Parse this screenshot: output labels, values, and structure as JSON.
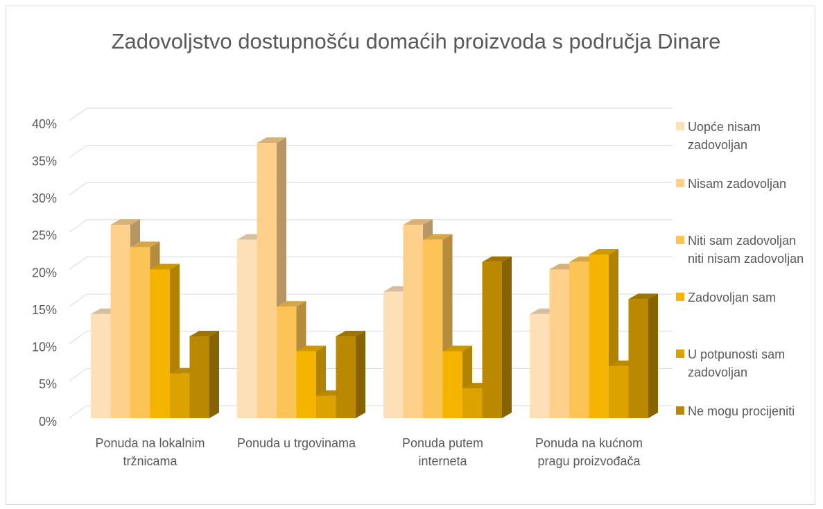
{
  "chart_data": {
    "type": "bar3d",
    "title": "Zadovoljstvo dostupnošću domaćih proizvoda s područja Dinare",
    "categories": [
      "Ponuda na lokalnim tržnicama",
      "Ponuda u trgovinama",
      "Ponuda putem interneta",
      "Ponuda na kućnom pragu proizvođača"
    ],
    "series": [
      {
        "name": "Uopće nisam zadovoljan",
        "color": "#fde0b8",
        "values": [
          14,
          24,
          17,
          14
        ]
      },
      {
        "name": "Nisam zadovoljan",
        "color": "#fdd08c",
        "values": [
          26,
          37,
          26,
          20
        ]
      },
      {
        "name": "Niti sam zadovoljan niti nisam zadovoljan",
        "color": "#fcc356",
        "values": [
          23,
          15,
          24,
          21
        ]
      },
      {
        "name": "Zadovoljan sam",
        "color": "#f4b400",
        "values": [
          20,
          9,
          9,
          22
        ]
      },
      {
        "name": "U potpunosti sam zadovoljan",
        "color": "#dba200",
        "values": [
          6,
          3,
          4,
          7
        ]
      },
      {
        "name": "Ne mogu procijeniti",
        "color": "#bb8900",
        "values": [
          11,
          11,
          21,
          16
        ]
      }
    ],
    "ylim": [
      0,
      40
    ],
    "yticks": [
      {
        "value": 0,
        "label": "0%"
      },
      {
        "value": 5,
        "label": "5%"
      },
      {
        "value": 10,
        "label": "10%"
      },
      {
        "value": 15,
        "label": "15%"
      },
      {
        "value": 20,
        "label": "20%"
      },
      {
        "value": 25,
        "label": "25%"
      },
      {
        "value": 30,
        "label": "30%"
      },
      {
        "value": 35,
        "label": "35%"
      },
      {
        "value": 40,
        "label": "40%"
      }
    ],
    "grid": true,
    "legend": "right"
  }
}
